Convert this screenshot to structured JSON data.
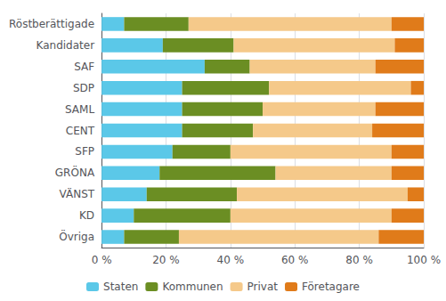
{
  "chart_data": {
    "type": "bar",
    "orientation": "horizontal",
    "stacked": true,
    "categories": [
      "Övriga",
      "KD",
      "VÄNST",
      "GRÖNA",
      "SFP",
      "CENT",
      "SAML",
      "SDP",
      "SAF",
      "Kandidater",
      "Röstberättigade"
    ],
    "series": [
      {
        "name": "Staten",
        "color": "#5bc8e8",
        "values": [
          7,
          10,
          14,
          18,
          22,
          25,
          25,
          25,
          32,
          19,
          7
        ]
      },
      {
        "name": "Kommunen",
        "color": "#6b8e23",
        "values": [
          17,
          30,
          28,
          36,
          18,
          22,
          25,
          27,
          14,
          22,
          20
        ]
      },
      {
        "name": "Privat",
        "color": "#f5c98a",
        "values": [
          62,
          50,
          53,
          36,
          50,
          37,
          35,
          44,
          39,
          50,
          63
        ]
      },
      {
        "name": "Företagare",
        "color": "#e07b1a",
        "values": [
          14,
          10,
          5,
          10,
          10,
          16,
          15,
          4,
          15,
          9,
          10
        ]
      }
    ],
    "xlim": [
      0,
      100
    ],
    "xticks": [
      {
        "value": 0,
        "label": "0 %"
      },
      {
        "value": 20,
        "label": "20 %"
      },
      {
        "value": 40,
        "label": "40 %"
      },
      {
        "value": 60,
        "label": "60 %"
      },
      {
        "value": 80,
        "label": "80 %"
      },
      {
        "value": 100,
        "label": "100 %"
      }
    ],
    "grid": true,
    "legend": "bottom"
  }
}
